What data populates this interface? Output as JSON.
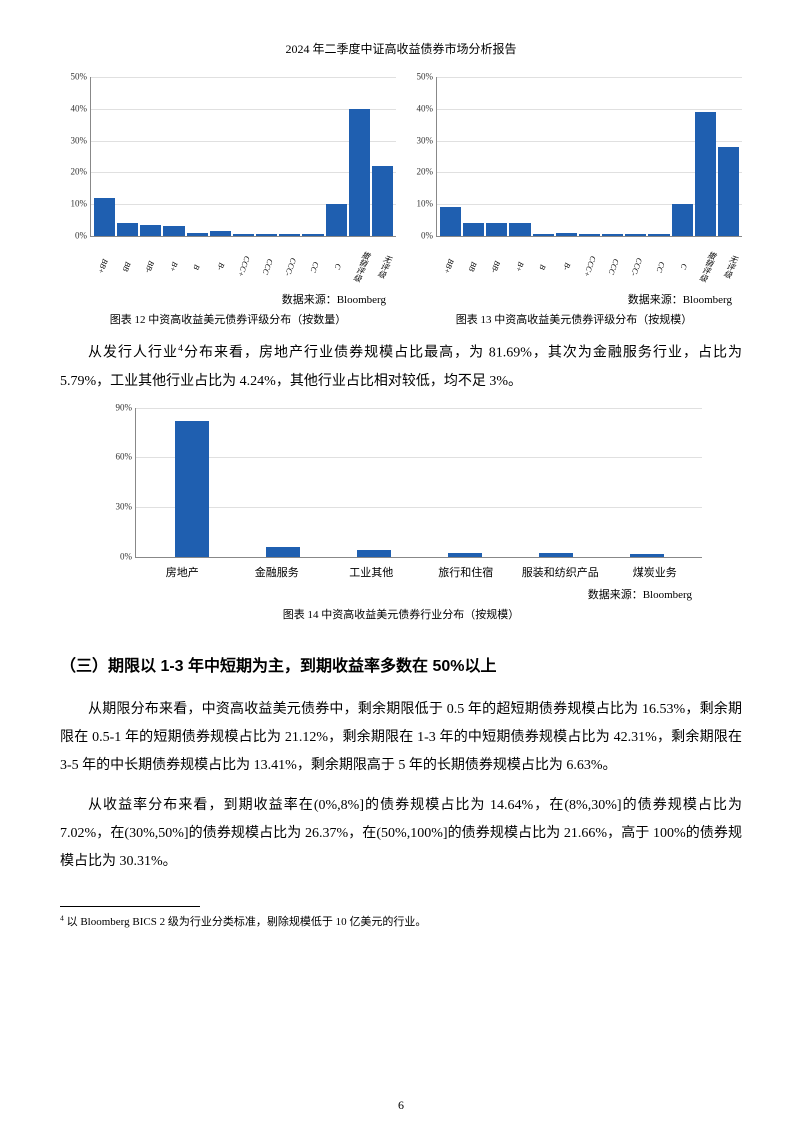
{
  "header": "2024 年二季度中证高收益债券市场分析报告",
  "colors": {
    "bar": "#1f5fb0",
    "grid": "#e0e0e0",
    "axis": "#888888"
  },
  "chart12": {
    "type": "bar",
    "ylim_max": 50,
    "ytick_step": 10,
    "ytick_suffix": "%",
    "categories": [
      "BB+",
      "BB",
      "BB-",
      "B+",
      "B",
      "B-",
      "CCC+",
      "CCC",
      "CCC-",
      "CC",
      "C",
      "撤销评级",
      "无评级"
    ],
    "values": [
      12,
      4,
      3.5,
      3,
      1,
      1.5,
      0.5,
      0.5,
      0.5,
      0.5,
      10,
      40,
      22
    ],
    "source_label": "数据来源：",
    "source_value": "Bloomberg",
    "caption": "图表 12 中资高收益美元债券评级分布（按数量）"
  },
  "chart13": {
    "type": "bar",
    "ylim_max": 50,
    "ytick_step": 10,
    "ytick_suffix": "%",
    "categories": [
      "BB+",
      "BB",
      "BB-",
      "B+",
      "B",
      "B-",
      "CCC+",
      "CCC",
      "CCC-",
      "CC",
      "C",
      "撤销评级",
      "无评级"
    ],
    "values": [
      9,
      4,
      4,
      4,
      0.5,
      1,
      0.5,
      0.5,
      0.5,
      0.5,
      10,
      39,
      28
    ],
    "source_label": "数据来源：",
    "source_value": "Bloomberg",
    "caption": "图表 13 中资高收益美元债券评级分布（按规模）"
  },
  "paragraph1_prefix": "从发行人行业",
  "paragraph1_footref": "4",
  "paragraph1_rest": "分布来看，房地产行业债券规模占比最高，为 81.69%，其次为金融服务行业，占比为 5.79%，工业其他行业占比为 4.24%，其他行业占比相对较低，均不足 3%。",
  "chart14": {
    "type": "bar",
    "ylim_max": 90,
    "yticks": [
      0,
      30,
      60,
      90
    ],
    "ytick_suffix": "%",
    "categories": [
      "房地产",
      "金融服务",
      "工业其他",
      "旅行和住宿",
      "服装和纺织产品",
      "煤炭业务"
    ],
    "values": [
      81.69,
      5.79,
      4.24,
      2.5,
      2.0,
      1.5
    ],
    "source_label": "数据来源：",
    "source_value": "Bloomberg",
    "caption": "图表 14 中资高收益美元债券行业分布（按规模）"
  },
  "section_heading": "（三）期限以 1-3 年中短期为主，到期收益率多数在 50%以上",
  "paragraph2": "从期限分布来看，中资高收益美元债券中，剩余期限低于 0.5 年的超短期债券规模占比为 16.53%，剩余期限在 0.5-1 年的短期债券规模占比为 21.12%，剩余期限在 1-3 年的中短期债券规模占比为 42.31%，剩余期限在 3-5 年的中长期债券规模占比为 13.41%，剩余期限高于 5 年的长期债券规模占比为 6.63%。",
  "paragraph3": "从收益率分布来看，到期收益率在(0%,8%]的债券规模占比为 14.64%，在(8%,30%]的债券规模占比为 7.02%，在(30%,50%]的债券规模占比为 26.37%，在(50%,100%]的债券规模占比为 21.66%，高于 100%的债券规模占比为 30.31%。",
  "footnote_marker": "4",
  "footnote_text": " 以 Bloomberg BICS 2 级为行业分类标准，剔除规模低于 10 亿美元的行业。",
  "page_number": "6"
}
